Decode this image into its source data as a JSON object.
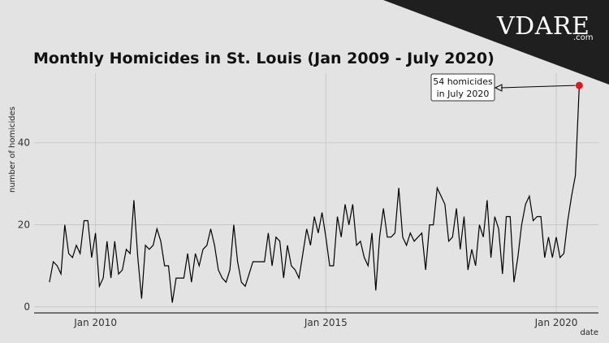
{
  "logo": {
    "text": "VDARE",
    "suffix": ".com"
  },
  "chart_data": {
    "type": "line",
    "title": "Monthly Homicides in St. Louis (Jan 2009 - July 2020)",
    "xlabel": "date",
    "ylabel": "number of homicides",
    "xticks": [
      {
        "label": "Jan 2010",
        "x": "2010-01"
      },
      {
        "label": "Jan 2015",
        "x": "2015-01"
      },
      {
        "label": "Jan 2020",
        "x": "2020-01"
      }
    ],
    "yticks": [
      0,
      20,
      40
    ],
    "xlim": [
      "2008-09",
      "2020-12"
    ],
    "ylim": [
      -1.5,
      57
    ],
    "grid": true,
    "line_color": "#000000",
    "highlight_color": "#e8141b",
    "annotation": {
      "line1": "54 homicides",
      "line2": "in July 2020",
      "x": "2020-07",
      "y": 54
    },
    "series": [
      {
        "x": [
          "2009-01",
          "2009-02",
          "2009-03",
          "2009-04",
          "2009-05",
          "2009-06",
          "2009-07",
          "2009-08",
          "2009-09",
          "2009-10",
          "2009-11",
          "2009-12",
          "2010-01",
          "2010-02",
          "2010-03",
          "2010-04",
          "2010-05",
          "2010-06",
          "2010-07",
          "2010-08",
          "2010-09",
          "2010-10",
          "2010-11",
          "2010-12",
          "2011-01",
          "2011-02",
          "2011-03",
          "2011-04",
          "2011-05",
          "2011-06",
          "2011-07",
          "2011-08",
          "2011-09",
          "2011-10",
          "2011-11",
          "2011-12",
          "2012-01",
          "2012-02",
          "2012-03",
          "2012-04",
          "2012-05",
          "2012-06",
          "2012-07",
          "2012-08",
          "2012-09",
          "2012-10",
          "2012-11",
          "2012-12",
          "2013-01",
          "2013-02",
          "2013-03",
          "2013-04",
          "2013-05",
          "2013-06",
          "2013-07",
          "2013-08",
          "2013-09",
          "2013-10",
          "2013-11",
          "2013-12",
          "2014-01",
          "2014-02",
          "2014-03",
          "2014-04",
          "2014-05",
          "2014-06",
          "2014-07",
          "2014-08",
          "2014-09",
          "2014-10",
          "2014-11",
          "2014-12",
          "2015-01",
          "2015-02",
          "2015-03",
          "2015-04",
          "2015-05",
          "2015-06",
          "2015-07",
          "2015-08",
          "2015-09",
          "2015-10",
          "2015-11",
          "2015-12",
          "2016-01",
          "2016-02",
          "2016-03",
          "2016-04",
          "2016-05",
          "2016-06",
          "2016-07",
          "2016-08",
          "2016-09",
          "2016-10",
          "2016-11",
          "2016-12",
          "2017-01",
          "2017-02",
          "2017-03",
          "2017-04",
          "2017-05",
          "2017-06",
          "2017-07",
          "2017-08",
          "2017-09",
          "2017-10",
          "2017-11",
          "2017-12",
          "2018-01",
          "2018-02",
          "2018-03",
          "2018-04",
          "2018-05",
          "2018-06",
          "2018-07",
          "2018-08",
          "2018-09",
          "2018-10",
          "2018-11",
          "2018-12",
          "2019-01",
          "2019-02",
          "2019-03",
          "2019-04",
          "2019-05",
          "2019-06",
          "2019-07",
          "2019-08",
          "2019-09",
          "2019-10",
          "2019-11",
          "2019-12",
          "2020-01",
          "2020-02",
          "2020-03",
          "2020-04",
          "2020-05",
          "2020-06",
          "2020-07"
        ],
        "values": [
          6,
          11,
          10,
          8,
          20,
          13,
          12,
          15,
          13,
          21,
          21,
          12,
          18,
          5,
          7,
          16,
          7,
          16,
          8,
          9,
          14,
          13,
          26,
          12,
          2,
          15,
          14,
          15,
          19,
          16,
          10,
          10,
          1,
          7,
          7,
          7,
          13,
          6,
          13,
          10,
          14,
          15,
          19,
          15,
          9,
          7,
          6,
          9,
          20,
          11,
          6,
          5,
          8,
          11,
          11,
          11,
          11,
          18,
          10,
          17,
          16,
          7,
          15,
          10,
          9,
          7,
          13,
          19,
          15,
          22,
          18,
          23,
          17,
          10,
          10,
          22,
          17,
          25,
          20,
          25,
          15,
          16,
          12,
          10,
          18,
          4,
          17,
          24,
          17,
          17,
          18,
          29,
          17,
          15,
          18,
          16,
          17,
          18,
          9,
          20,
          20,
          29,
          27,
          25,
          16,
          17,
          24,
          14,
          22,
          9,
          14,
          10,
          20,
          17,
          26,
          12,
          22,
          19,
          8,
          22,
          22,
          6,
          12,
          20,
          25,
          27,
          21,
          22,
          22,
          12,
          17,
          12,
          17,
          12,
          13,
          21,
          27,
          32,
          54
        ]
      }
    ]
  }
}
